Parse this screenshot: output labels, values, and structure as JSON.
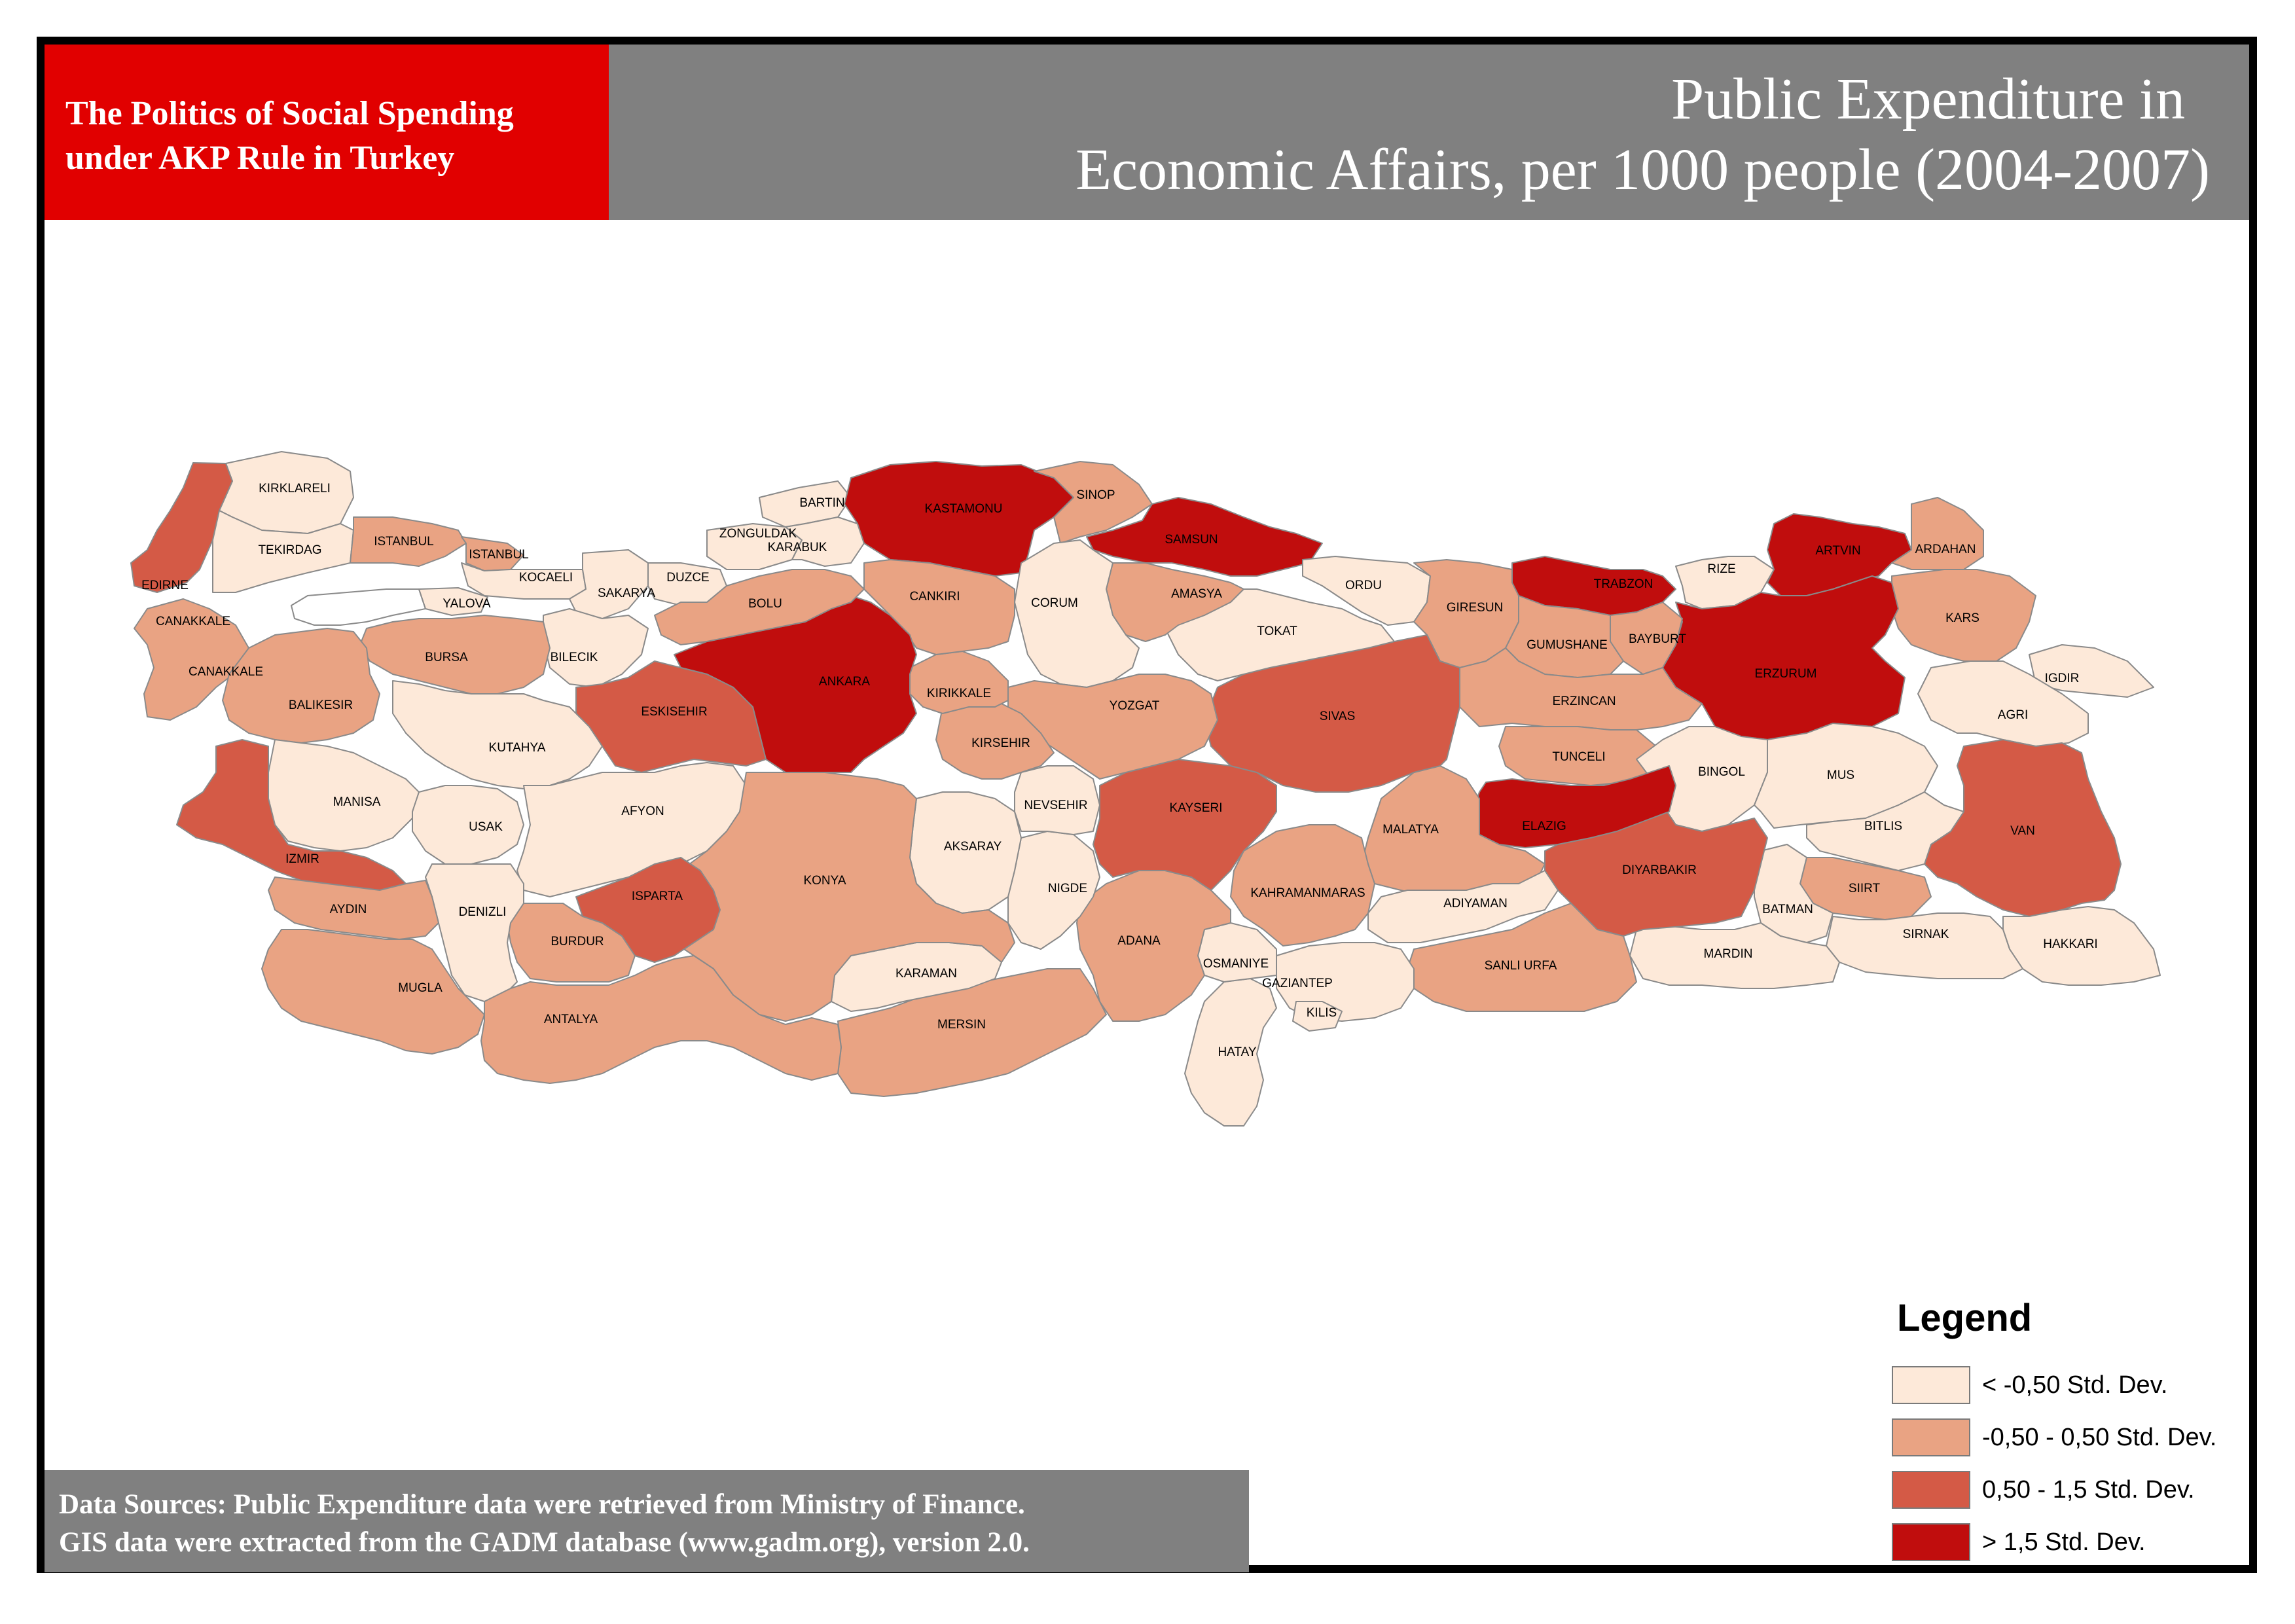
{
  "header": {
    "project_line1": "The Politics of Social Spending",
    "project_line2": "under AKP Rule in Turkey",
    "title_line1": "Public Expenditure in",
    "title_line2": "Economic Affairs, per 1000 people (2004-2007)"
  },
  "colors": {
    "low": "#fde9d9",
    "mid": "#e9a383",
    "high": "#d45a46",
    "veryhigh": "#c00d0d",
    "header_red": "#e10000",
    "header_gray": "#808080"
  },
  "legend": {
    "title": "Legend",
    "classes": [
      {
        "key": "low",
        "label": "< -0,50 Std. Dev."
      },
      {
        "key": "mid",
        "label": "-0,50 - 0,50 Std. Dev."
      },
      {
        "key": "high",
        "label": "0,50 - 1,5 Std. Dev."
      },
      {
        "key": "veryhigh",
        "label": "> 1,5 Std. Dev."
      }
    ]
  },
  "provinces": [
    {
      "name": "KIRKLARELI",
      "class": "low"
    },
    {
      "name": "EDIRNE",
      "class": "high"
    },
    {
      "name": "TEKIRDAG",
      "class": "low"
    },
    {
      "name": "ISTANBUL",
      "class": "mid"
    },
    {
      "name": "CANAKKALE",
      "class": "mid"
    },
    {
      "name": "YALOVA",
      "class": "low"
    },
    {
      "name": "KOCAELI",
      "class": "low"
    },
    {
      "name": "SAKARYA",
      "class": "low"
    },
    {
      "name": "DUZCE",
      "class": "low"
    },
    {
      "name": "ZONGULDAK",
      "class": "low"
    },
    {
      "name": "BARTIN",
      "class": "low"
    },
    {
      "name": "KARABUK",
      "class": "low"
    },
    {
      "name": "KASTAMONU",
      "class": "veryhigh"
    },
    {
      "name": "SINOP",
      "class": "mid"
    },
    {
      "name": "SAMSUN",
      "class": "veryhigh"
    },
    {
      "name": "ORDU",
      "class": "low"
    },
    {
      "name": "GIRESUN",
      "class": "mid"
    },
    {
      "name": "TRABZON",
      "class": "veryhigh"
    },
    {
      "name": "RIZE",
      "class": "low"
    },
    {
      "name": "ARTVIN",
      "class": "veryhigh"
    },
    {
      "name": "ARDAHAN",
      "class": "mid"
    },
    {
      "name": "KARS",
      "class": "mid"
    },
    {
      "name": "IGDIR",
      "class": "low"
    },
    {
      "name": "AGRI",
      "class": "low"
    },
    {
      "name": "ERZURUM",
      "class": "veryhigh"
    },
    {
      "name": "BAYBURT",
      "class": "mid"
    },
    {
      "name": "GUMUSHANE",
      "class": "mid"
    },
    {
      "name": "ERZINCAN",
      "class": "mid"
    },
    {
      "name": "TUNCELI",
      "class": "mid"
    },
    {
      "name": "BINGOL",
      "class": "low"
    },
    {
      "name": "MUS",
      "class": "low"
    },
    {
      "name": "VAN",
      "class": "high"
    },
    {
      "name": "BITLIS",
      "class": "low"
    },
    {
      "name": "SIIRT",
      "class": "mid"
    },
    {
      "name": "HAKKARI",
      "class": "low"
    },
    {
      "name": "SIRNAK",
      "class": "low"
    },
    {
      "name": "BATMAN",
      "class": "low"
    },
    {
      "name": "MARDIN",
      "class": "low"
    },
    {
      "name": "DIYARBAKIR",
      "class": "high"
    },
    {
      "name": "ELAZIG",
      "class": "veryhigh"
    },
    {
      "name": "MALATYA",
      "class": "mid"
    },
    {
      "name": "ADIYAMAN",
      "class": "low"
    },
    {
      "name": "SANLI URFA",
      "class": "mid"
    },
    {
      "name": "GAZIANTEP",
      "class": "low"
    },
    {
      "name": "KILIS",
      "class": "low"
    },
    {
      "name": "HATAY",
      "class": "low"
    },
    {
      "name": "OSMANIYE",
      "class": "low"
    },
    {
      "name": "KAHRAMANMARAS",
      "class": "mid"
    },
    {
      "name": "ADANA",
      "class": "mid"
    },
    {
      "name": "MERSIN",
      "class": "mid"
    },
    {
      "name": "KARAMAN",
      "class": "low"
    },
    {
      "name": "NIGDE",
      "class": "low"
    },
    {
      "name": "AKSARAY",
      "class": "low"
    },
    {
      "name": "NEVSEHIR",
      "class": "low"
    },
    {
      "name": "KAYSERI",
      "class": "high"
    },
    {
      "name": "SIVAS",
      "class": "high"
    },
    {
      "name": "TOKAT",
      "class": "low"
    },
    {
      "name": "AMASYA",
      "class": "mid"
    },
    {
      "name": "CORUM",
      "class": "low"
    },
    {
      "name": "YOZGAT",
      "class": "mid"
    },
    {
      "name": "KIRSEHIR",
      "class": "mid"
    },
    {
      "name": "KIRIKKALE",
      "class": "mid"
    },
    {
      "name": "CANKIRI",
      "class": "mid"
    },
    {
      "name": "ANKARA",
      "class": "veryhigh"
    },
    {
      "name": "BOLU",
      "class": "mid"
    },
    {
      "name": "BILECIK",
      "class": "low"
    },
    {
      "name": "ESKISEHIR",
      "class": "high"
    },
    {
      "name": "BURSA",
      "class": "mid"
    },
    {
      "name": "BALIKESIR",
      "class": "mid"
    },
    {
      "name": "KUTAHYA",
      "class": "low"
    },
    {
      "name": "MANISA",
      "class": "low"
    },
    {
      "name": "IZMIR",
      "class": "high"
    },
    {
      "name": "USAK",
      "class": "low"
    },
    {
      "name": "AFYON",
      "class": "low"
    },
    {
      "name": "KONYA",
      "class": "mid"
    },
    {
      "name": "ISPARTA",
      "class": "high"
    },
    {
      "name": "BURDUR",
      "class": "mid"
    },
    {
      "name": "DENIZLI",
      "class": "low"
    },
    {
      "name": "AYDIN",
      "class": "mid"
    },
    {
      "name": "MUGLA",
      "class": "mid"
    },
    {
      "name": "ANTALYA",
      "class": "mid"
    }
  ],
  "sources": {
    "line1": "Data Sources: Public Expenditure data were retrieved from Ministry of Finance.",
    "line2": "GIS data were extracted from the GADM database (www.gadm.org), version 2.0."
  }
}
